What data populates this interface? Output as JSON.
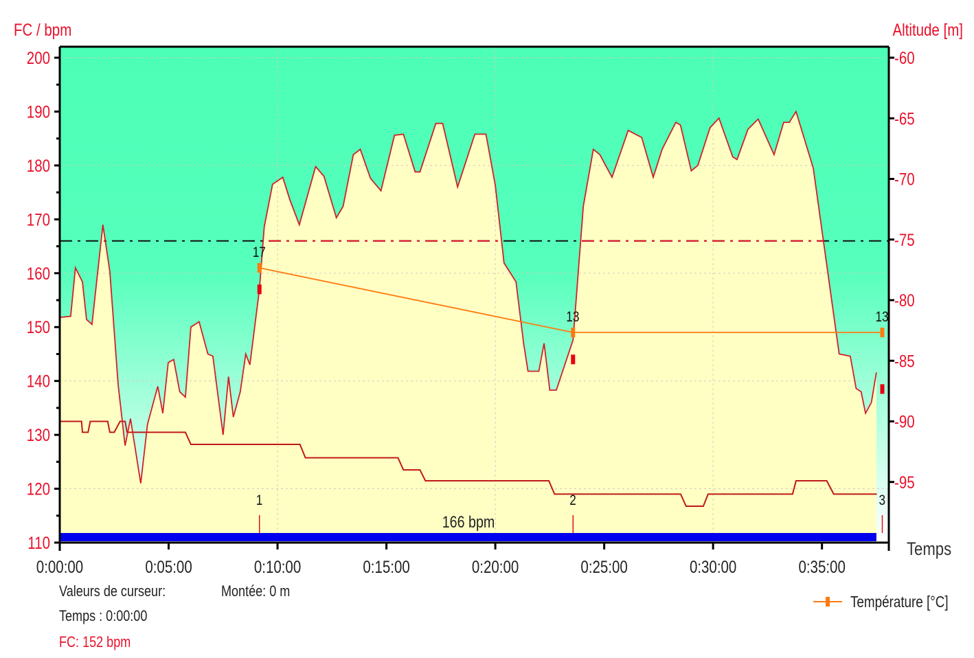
{
  "chart_data": {
    "type": "line",
    "y_left_label": "FC / bpm",
    "y_right_label": "Altitude [m]",
    "xlabel": "Temps",
    "x_ticks": [
      "0:00:00",
      "0:05:00",
      "0:10:00",
      "0:15:00",
      "0:20:00",
      "0:25:00",
      "0:30:00",
      "0:35:00"
    ],
    "x_tick_minutes": [
      0,
      5,
      10,
      15,
      20,
      25,
      30,
      35
    ],
    "xlim_minutes": [
      0,
      38.07
    ],
    "y_left_ticks": [
      200,
      190,
      180,
      170,
      160,
      150,
      140,
      130,
      120,
      110
    ],
    "ylim_left": [
      110,
      200
    ],
    "y_right_ticks": [
      "-60",
      "-65",
      "-70",
      "-75",
      "-80",
      "-85",
      "-90",
      "-95"
    ],
    "ylim_right": [
      -100,
      -60
    ],
    "grid": true,
    "colors": {
      "hr_line": "#d0202a",
      "hr_fill": "#ffffc4",
      "bg_top": "#4cffb6",
      "bg_bottom": "#ffffff",
      "altitude": "#c01818",
      "temperature": "#ff7a10",
      "threshold": "#e8102a",
      "bar": "#0000ee",
      "axis_text": "#e8102a"
    },
    "threshold": {
      "value": 166,
      "label": "166 bpm"
    },
    "series": [
      {
        "key": "heart_rate",
        "axis": "left",
        "x_minutes": [
          0,
          0.5,
          0.72,
          1.04,
          1.23,
          1.48,
          1.98,
          2.3,
          2.68,
          3.0,
          3.25,
          3.72,
          4.03,
          4.5,
          4.73,
          4.98,
          5.23,
          5.51,
          5.77,
          6.02,
          6.4,
          6.8,
          7.03,
          7.5,
          7.75,
          7.97,
          8.29,
          8.54,
          8.73,
          9.17,
          9.39,
          9.77,
          10.24,
          10.56,
          11,
          11.75,
          12.13,
          12.7,
          13.01,
          13.48,
          13.8,
          14.27,
          14.75,
          15.37,
          15.78,
          16.32,
          16.54,
          17.27,
          17.58,
          18.27,
          19.06,
          19.57,
          20,
          20.4,
          20.95,
          21.3,
          21.5,
          22,
          22.24,
          22.5,
          22.8,
          23.57,
          24.04,
          24.5,
          24.8,
          25.36,
          26.1,
          26.72,
          27.25,
          27.66,
          28.29,
          28.5,
          29,
          29.3,
          29.86,
          30.27,
          30.9,
          31.1,
          31.6,
          32.07,
          32.8,
          33.24,
          33.5,
          33.81,
          34.6,
          35.79,
          36.3,
          36.57,
          36.8,
          37.0,
          37.27,
          37.5
        ],
        "values": [
          151.8,
          152,
          161,
          158.4,
          151.4,
          150.5,
          169,
          160.3,
          139.3,
          128,
          133,
          121,
          132,
          139,
          134,
          143.4,
          144,
          138,
          137,
          150,
          151,
          145,
          144.6,
          130,
          140.8,
          133.3,
          138,
          145,
          143,
          157,
          168.6,
          176.5,
          177.8,
          173.7,
          169,
          179.8,
          178,
          170.3,
          172.4,
          182,
          183,
          177.6,
          175.3,
          185.6,
          185.8,
          178.8,
          178.8,
          187.8,
          187.8,
          176,
          185.8,
          185.8,
          176.3,
          161.9,
          158.4,
          147,
          141.8,
          141.8,
          147,
          138.3,
          138.3,
          147.6,
          172.4,
          183,
          182,
          177.8,
          186.5,
          185.2,
          177.8,
          183,
          188,
          187.5,
          179,
          180,
          187,
          188.8,
          181.6,
          181.1,
          186.7,
          188.6,
          182,
          188,
          188,
          190,
          179.5,
          145,
          144.6,
          138.6,
          138,
          134,
          136,
          141.6
        ]
      },
      {
        "key": "altitude",
        "axis": "right",
        "x_minutes": [
          0,
          1.0,
          1.04,
          1.3,
          1.4,
          2.2,
          2.3,
          2.5,
          2.77,
          3.0,
          3.09,
          5.77,
          6.02,
          11.03,
          11.28,
          15.53,
          15.78,
          16.54,
          16.79,
          22.46,
          22.72,
          28.51,
          28.76,
          29.55,
          29.77,
          33.65,
          33.81,
          35.22,
          35.54,
          37.52
        ],
        "values": [
          -90,
          -90,
          -90.9,
          -90.9,
          -90,
          -90,
          -90.9,
          -90.9,
          -90,
          -90,
          -90.9,
          -90.9,
          -91.9,
          -91.9,
          -93,
          -93,
          -94,
          -94,
          -94.9,
          -94.9,
          -96,
          -96,
          -97,
          -97,
          -96,
          -96,
          -94.9,
          -94.9,
          -96,
          -96
        ]
      },
      {
        "key": "temperature",
        "name": "Température [°C]",
        "x_minutes": [
          9.17,
          23.57,
          37.77
        ],
        "values": [
          17,
          13,
          13
        ],
        "point_labels": [
          "17",
          "13",
          "13"
        ]
      }
    ],
    "laps": [
      {
        "label": "1",
        "x_minutes": 9.17
      },
      {
        "label": "2",
        "x_minutes": 23.57
      },
      {
        "label": "3",
        "x_minutes": 37.77
      }
    ],
    "legend": {
      "placement": "bottom-right",
      "entries": [
        "Température [°C]"
      ]
    }
  },
  "cursor": {
    "title": "Valeurs de curseur:",
    "time": "Temps : 0:00:00",
    "hr": "FC: 152 bpm",
    "climb": "Montée: 0 m"
  }
}
